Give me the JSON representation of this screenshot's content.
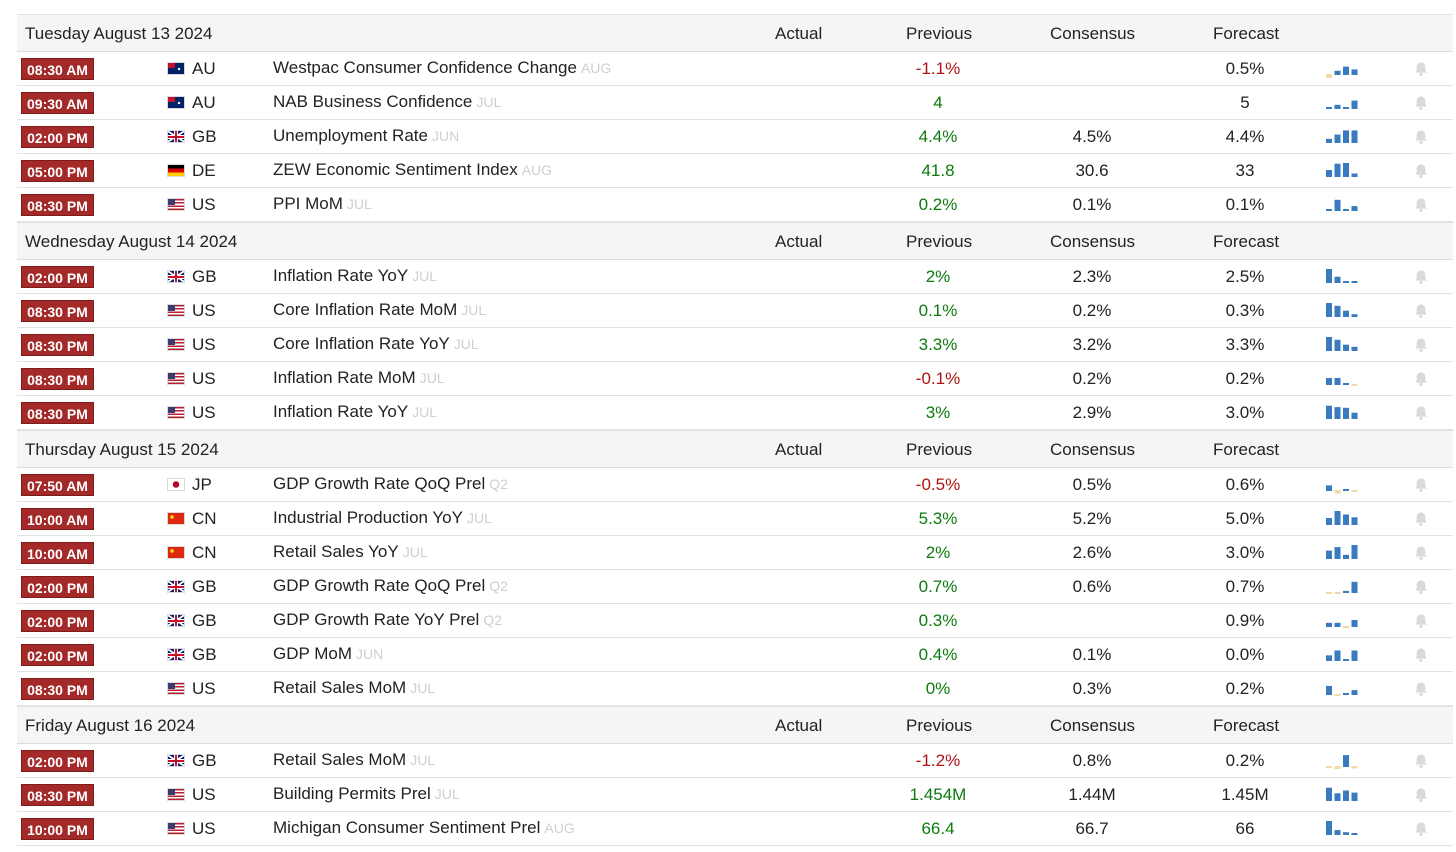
{
  "headers": {
    "actual": "Actual",
    "previous": "Previous",
    "consensus": "Consensus",
    "forecast": "Forecast"
  },
  "colors": {
    "time_badge": "#a42a2a",
    "positive": "#0d7a0d",
    "negative": "#b01313",
    "spark_blue": "#3a7abf",
    "spark_tan": "#f2d8a7"
  },
  "days": [
    {
      "date": "Tuesday August 13 2024",
      "events": [
        {
          "time": "08:30 AM",
          "country": "AU",
          "event": "Westpac Consumer Confidence Change",
          "ref": "AUG",
          "actual": "",
          "previous": "-1.1%",
          "previous_tone": "neg",
          "consensus": "",
          "forecast": "0.5%",
          "spark": [
            -0.9,
            0.3,
            0.6,
            0.4
          ]
        },
        {
          "time": "09:30 AM",
          "country": "AU",
          "event": "NAB Business Confidence",
          "ref": "JUL",
          "actual": "",
          "previous": "4",
          "previous_tone": "pos",
          "consensus": "",
          "forecast": "5",
          "spark": [
            0.1,
            0.3,
            0.1,
            0.6
          ]
        },
        {
          "time": "02:00 PM",
          "country": "GB",
          "event": "Unemployment Rate",
          "ref": "JUN",
          "actual": "",
          "previous": "4.4%",
          "previous_tone": "pos",
          "consensus": "4.5%",
          "forecast": "4.4%",
          "spark": [
            0.3,
            0.6,
            0.9,
            0.9
          ]
        },
        {
          "time": "05:00 PM",
          "country": "DE",
          "event": "ZEW Economic Sentiment Index",
          "ref": "AUG",
          "actual": "",
          "previous": "41.8",
          "previous_tone": "pos",
          "consensus": "30.6",
          "forecast": "33",
          "spark": [
            0.5,
            0.95,
            1.0,
            0.25
          ]
        },
        {
          "time": "08:30 PM",
          "country": "US",
          "event": "PPI MoM",
          "ref": "JUL",
          "actual": "",
          "previous": "0.2%",
          "previous_tone": "pos",
          "consensus": "0.1%",
          "forecast": "0.1%",
          "spark": [
            0.0,
            0.8,
            0.0,
            0.35
          ]
        }
      ]
    },
    {
      "date": "Wednesday August 14 2024",
      "events": [
        {
          "time": "02:00 PM",
          "country": "GB",
          "event": "Inflation Rate YoY",
          "ref": "JUL",
          "actual": "",
          "previous": "2%",
          "previous_tone": "pos",
          "consensus": "2.3%",
          "forecast": "2.5%",
          "spark": [
            1.0,
            0.45,
            0.1,
            0.1
          ]
        },
        {
          "time": "08:30 PM",
          "country": "US",
          "event": "Core Inflation Rate MoM",
          "ref": "JUL",
          "actual": "",
          "previous": "0.1%",
          "previous_tone": "pos",
          "consensus": "0.2%",
          "forecast": "0.3%",
          "spark": [
            1.0,
            0.8,
            0.45,
            0.2
          ]
        },
        {
          "time": "08:30 PM",
          "country": "US",
          "event": "Core Inflation Rate YoY",
          "ref": "JUL",
          "actual": "",
          "previous": "3.3%",
          "previous_tone": "pos",
          "consensus": "3.2%",
          "forecast": "3.3%",
          "spark": [
            1.0,
            0.8,
            0.45,
            0.3
          ]
        },
        {
          "time": "08:30 PM",
          "country": "US",
          "event": "Inflation Rate MoM",
          "ref": "JUL",
          "actual": "",
          "previous": "-0.1%",
          "previous_tone": "neg",
          "consensus": "0.2%",
          "forecast": "0.2%",
          "spark": [
            0.5,
            0.5,
            0.0,
            -0.15
          ]
        },
        {
          "time": "08:30 PM",
          "country": "US",
          "event": "Inflation Rate YoY",
          "ref": "JUL",
          "actual": "",
          "previous": "3%",
          "previous_tone": "pos",
          "consensus": "2.9%",
          "forecast": "3.0%",
          "spark": [
            0.95,
            0.85,
            0.8,
            0.45
          ]
        }
      ]
    },
    {
      "date": "Thursday August 15 2024",
      "events": [
        {
          "time": "07:50 AM",
          "country": "JP",
          "event": "GDP Growth Rate QoQ Prel",
          "ref": "Q2",
          "actual": "",
          "previous": "-0.5%",
          "previous_tone": "neg",
          "consensus": "0.5%",
          "forecast": "0.6%",
          "spark": [
            0.4,
            -0.6,
            0.1,
            -0.3
          ]
        },
        {
          "time": "10:00 AM",
          "country": "CN",
          "event": "Industrial Production YoY",
          "ref": "JUL",
          "actual": "",
          "previous": "5.3%",
          "previous_tone": "pos",
          "consensus": "5.2%",
          "forecast": "5.0%",
          "spark": [
            0.5,
            1.0,
            0.75,
            0.55
          ]
        },
        {
          "time": "10:00 AM",
          "country": "CN",
          "event": "Retail Sales YoY",
          "ref": "JUL",
          "actual": "",
          "previous": "2%",
          "previous_tone": "pos",
          "consensus": "2.6%",
          "forecast": "3.0%",
          "spark": [
            0.6,
            0.85,
            0.3,
            1.0
          ]
        },
        {
          "time": "02:00 PM",
          "country": "GB",
          "event": "GDP Growth Rate QoQ Prel",
          "ref": "Q2",
          "actual": "",
          "previous": "0.7%",
          "previous_tone": "pos",
          "consensus": "0.6%",
          "forecast": "0.7%",
          "spark": [
            -0.15,
            -0.3,
            0.15,
            0.8
          ]
        },
        {
          "time": "02:00 PM",
          "country": "GB",
          "event": "GDP Growth Rate YoY Prel",
          "ref": "Q2",
          "actual": "",
          "previous": "0.3%",
          "previous_tone": "pos",
          "consensus": "",
          "forecast": "0.9%",
          "spark": [
            0.3,
            0.3,
            -0.2,
            0.5
          ]
        },
        {
          "time": "02:00 PM",
          "country": "GB",
          "event": "GDP MoM",
          "ref": "JUN",
          "actual": "",
          "previous": "0.4%",
          "previous_tone": "pos",
          "consensus": "0.1%",
          "forecast": "0.0%",
          "spark": [
            0.4,
            0.75,
            0.0,
            0.75
          ]
        },
        {
          "time": "08:30 PM",
          "country": "US",
          "event": "Retail Sales MoM",
          "ref": "JUL",
          "actual": "",
          "previous": "0%",
          "previous_tone": "pos",
          "consensus": "0.3%",
          "forecast": "0.2%",
          "spark": [
            0.65,
            -0.3,
            0.0,
            0.35
          ]
        }
      ]
    },
    {
      "date": "Friday August 16 2024",
      "events": [
        {
          "time": "02:00 PM",
          "country": "GB",
          "event": "Retail Sales MoM",
          "ref": "JUL",
          "actual": "",
          "previous": "-1.2%",
          "previous_tone": "neg",
          "consensus": "0.8%",
          "forecast": "0.2%",
          "spark": [
            -0.15,
            -0.5,
            0.85,
            -0.4
          ]
        },
        {
          "time": "08:30 PM",
          "country": "US",
          "event": "Building Permits Prel",
          "ref": "JUL",
          "actual": "",
          "previous": "1.454M",
          "previous_tone": "pos",
          "consensus": "1.44M",
          "forecast": "1.45M",
          "spark": [
            0.95,
            0.55,
            0.75,
            0.6
          ]
        },
        {
          "time": "10:00 PM",
          "country": "US",
          "event": "Michigan Consumer Sentiment Prel",
          "ref": "AUG",
          "actual": "",
          "previous": "66.4",
          "previous_tone": "pos",
          "consensus": "66.7",
          "forecast": "66",
          "spark": [
            1.0,
            0.35,
            0.2,
            0.12
          ]
        }
      ]
    }
  ]
}
